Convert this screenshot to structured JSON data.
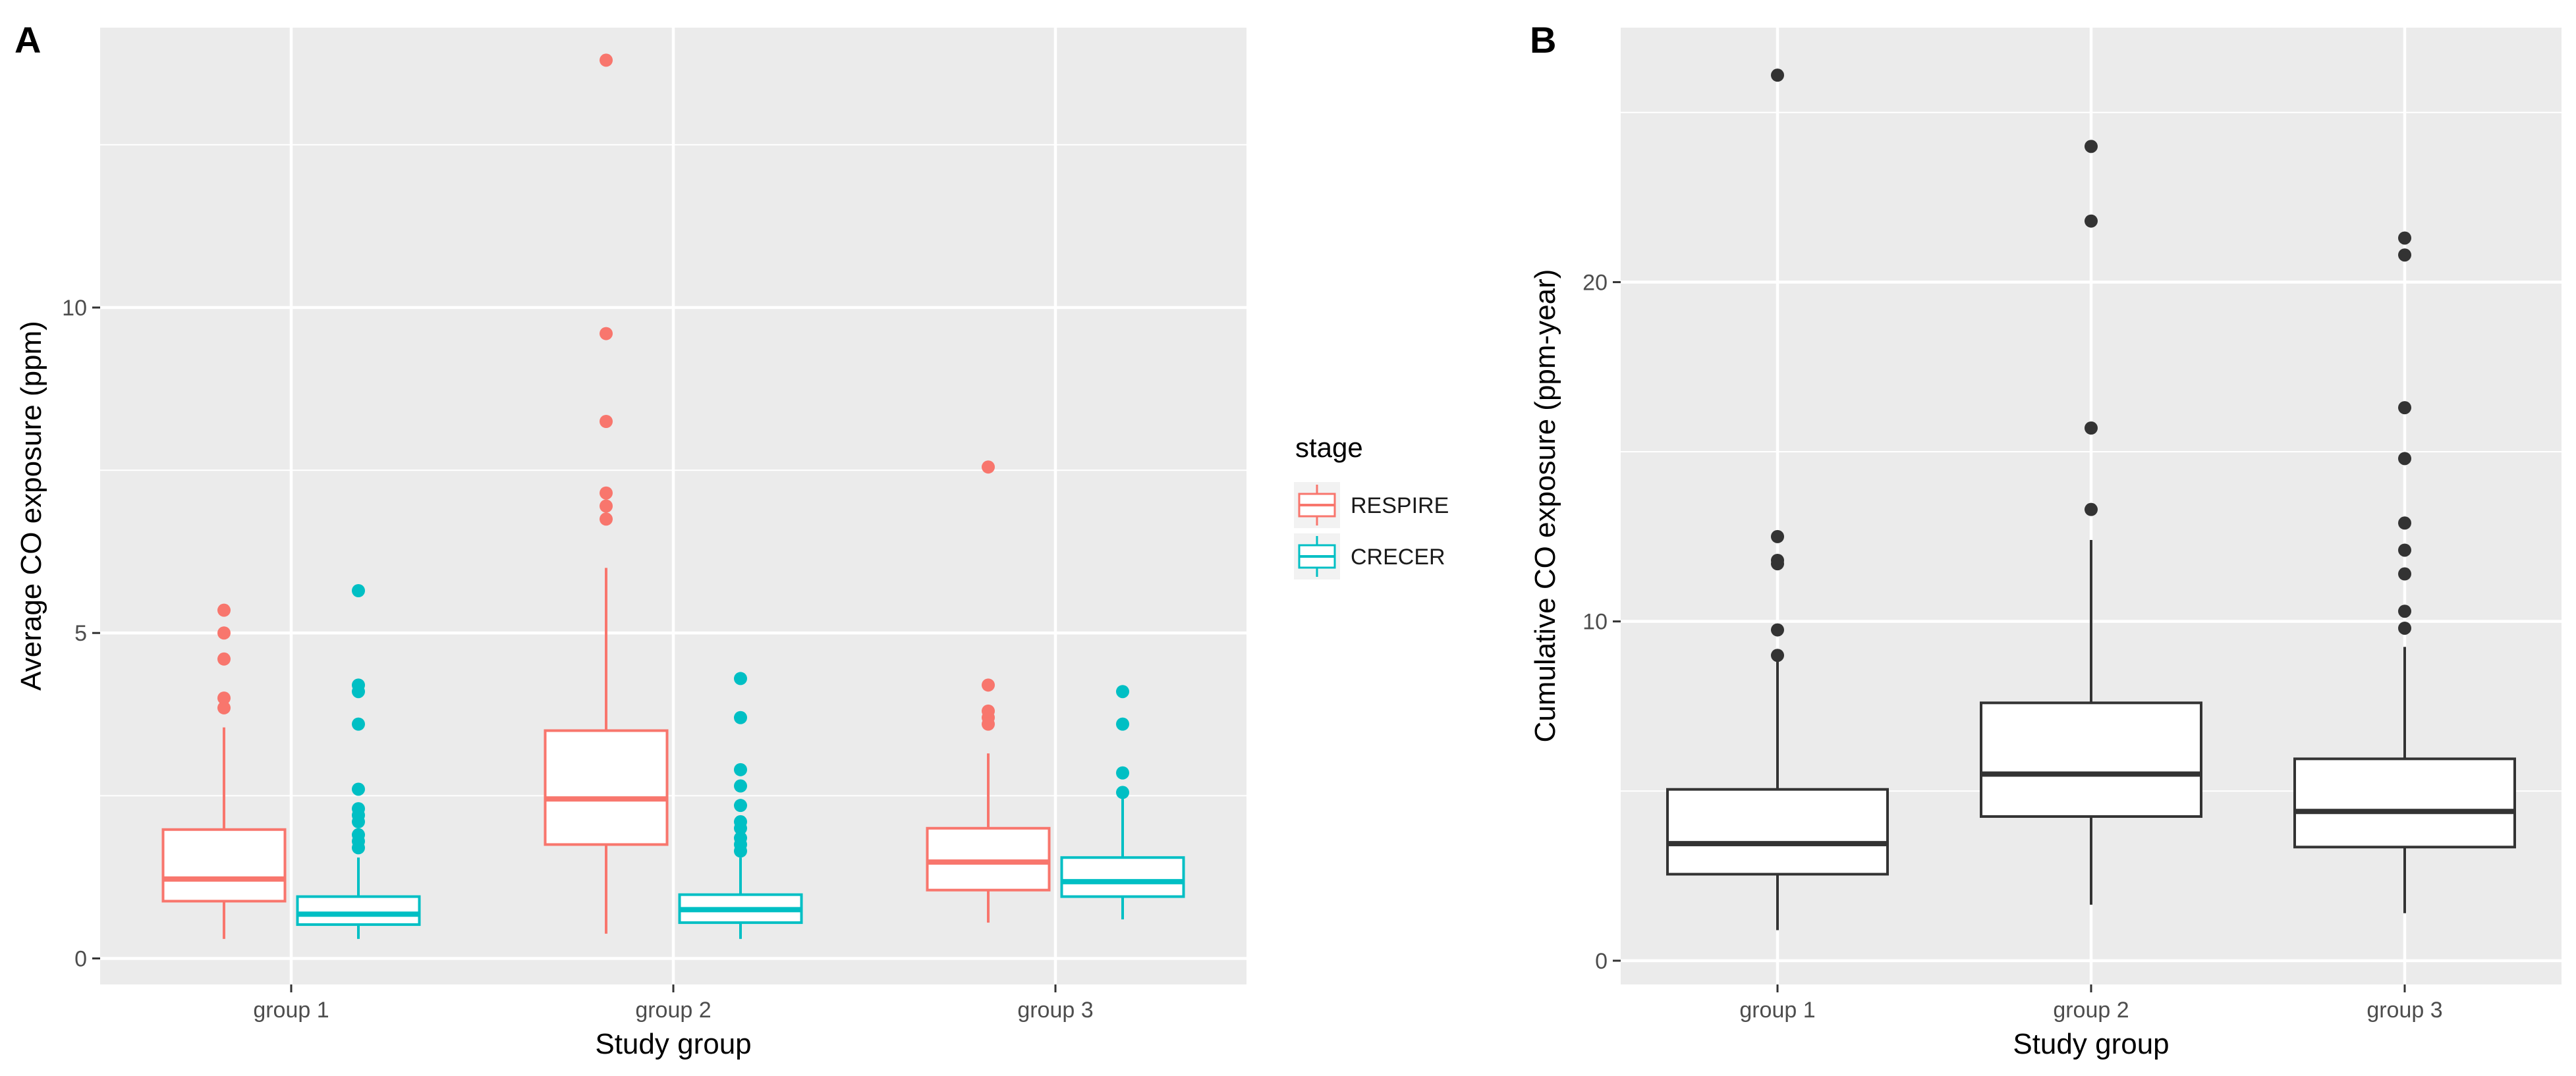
{
  "figure": {
    "panels": [
      "A",
      "B"
    ]
  },
  "chart_data": [
    {
      "panel": "A",
      "type": "box",
      "title": "",
      "xlabel": "Study group",
      "ylabel": "Average CO exposure (ppm)",
      "categories": [
        "group 1",
        "group 2",
        "group 3"
      ],
      "ylim": [
        -0.4,
        14.3
      ],
      "yticks": [
        0,
        5,
        10
      ],
      "grid": true,
      "legend": {
        "title": "stage",
        "position": "right",
        "entries": [
          "RESPIRE",
          "CRECER"
        ]
      },
      "series": [
        {
          "name": "RESPIRE",
          "color": "#F8766D",
          "boxes": [
            {
              "category": "group 1",
              "whisker_low": 0.3,
              "q1": 0.88,
              "median": 1.22,
              "q3": 1.98,
              "whisker_high": 3.55,
              "outliers": [
                3.85,
                4.0,
                4.6,
                5.0,
                5.35
              ]
            },
            {
              "category": "group 2",
              "whisker_low": 0.38,
              "q1": 1.75,
              "median": 2.45,
              "q3": 3.5,
              "whisker_high": 6.0,
              "outliers": [
                6.75,
                6.95,
                7.15,
                8.25,
                9.6,
                13.8
              ]
            },
            {
              "category": "group 3",
              "whisker_low": 0.55,
              "q1": 1.05,
              "median": 1.48,
              "q3": 2.0,
              "whisker_high": 3.15,
              "outliers": [
                3.6,
                3.7,
                3.8,
                4.2,
                7.55
              ]
            }
          ]
        },
        {
          "name": "CRECER",
          "color": "#00BFC4",
          "boxes": [
            {
              "category": "group 1",
              "whisker_low": 0.3,
              "q1": 0.52,
              "median": 0.68,
              "q3": 0.95,
              "whisker_high": 1.55,
              "outliers": [
                1.7,
                1.8,
                1.9,
                2.1,
                2.2,
                2.3,
                2.6,
                3.6,
                4.1,
                4.2,
                5.65
              ]
            },
            {
              "category": "group 2",
              "whisker_low": 0.3,
              "q1": 0.55,
              "median": 0.75,
              "q3": 0.98,
              "whisker_high": 1.55,
              "outliers": [
                1.65,
                1.75,
                1.85,
                2.0,
                2.1,
                2.35,
                2.65,
                2.9,
                3.7,
                4.3
              ]
            },
            {
              "category": "group 3",
              "whisker_low": 0.6,
              "q1": 0.95,
              "median": 1.18,
              "q3": 1.55,
              "whisker_high": 2.45,
              "outliers": [
                2.55,
                2.85,
                3.6,
                4.1
              ]
            }
          ]
        }
      ]
    },
    {
      "panel": "B",
      "type": "box",
      "title": "",
      "xlabel": "Study group",
      "ylabel": "Cumulative CO exposure (ppm-year)",
      "categories": [
        "group 1",
        "group 2",
        "group 3"
      ],
      "ylim": [
        -0.7,
        27.5
      ],
      "yticks": [
        0,
        10,
        20
      ],
      "grid": true,
      "series": [
        {
          "name": "Cumulative CO exposure",
          "color": "#333333",
          "boxes": [
            {
              "category": "group 1",
              "whisker_low": 0.9,
              "q1": 2.55,
              "median": 3.45,
              "q3": 5.05,
              "whisker_high": 8.85,
              "outliers": [
                9.0,
                9.75,
                11.7,
                11.8,
                12.5,
                26.1
              ]
            },
            {
              "category": "group 2",
              "whisker_low": 1.65,
              "q1": 4.25,
              "median": 5.5,
              "q3": 7.6,
              "whisker_high": 12.4,
              "outliers": [
                13.3,
                15.7,
                21.8,
                24.0
              ]
            },
            {
              "category": "group 3",
              "whisker_low": 1.4,
              "q1": 3.35,
              "median": 4.4,
              "q3": 5.95,
              "whisker_high": 9.25,
              "outliers": [
                9.8,
                10.3,
                11.4,
                12.1,
                12.9,
                14.8,
                16.3,
                20.8,
                21.3
              ]
            }
          ]
        }
      ]
    }
  ]
}
